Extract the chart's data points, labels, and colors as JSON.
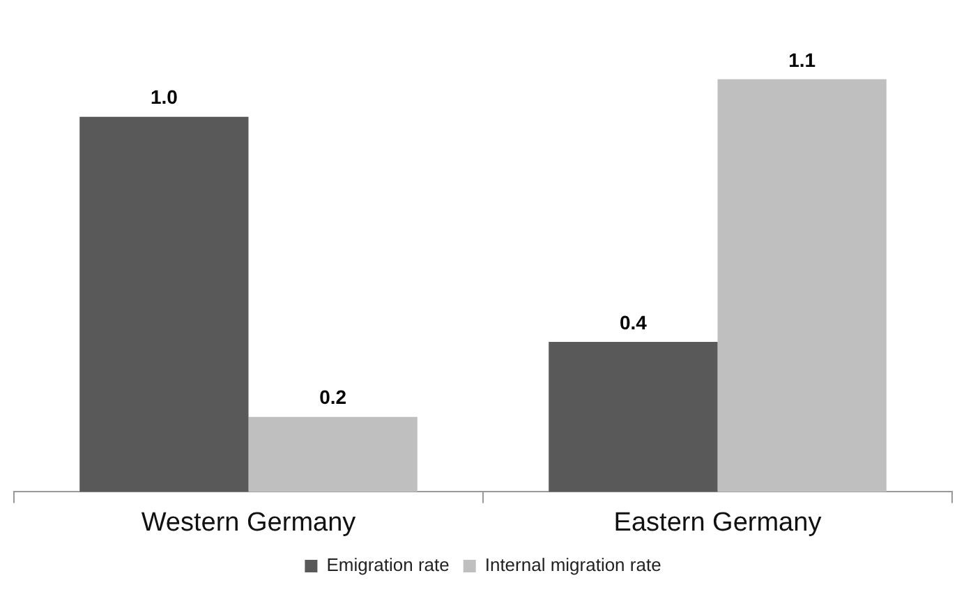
{
  "chart_data": {
    "type": "bar",
    "categories": [
      "Western Germany",
      "Eastern Germany"
    ],
    "series": [
      {
        "name": "Emigration rate",
        "color": "#595959",
        "values": [
          1.0,
          0.4
        ],
        "value_labels": [
          "1.0",
          "0.4"
        ]
      },
      {
        "name": "Internal migration rate",
        "color": "#bfbfbf",
        "values": [
          0.2,
          1.1
        ],
        "value_labels": [
          "0.2",
          "1.1"
        ]
      }
    ],
    "tick_labels": "x",
    "legend": "bottom",
    "grid": false
  }
}
